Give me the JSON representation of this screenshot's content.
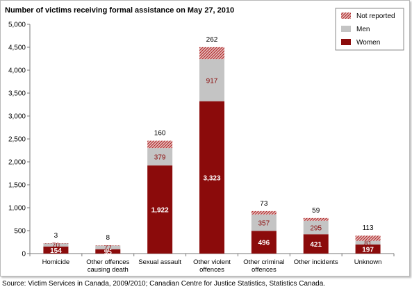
{
  "chart_data": {
    "type": "bar",
    "stacked": true,
    "title": "Number of victims receiving formal assistance on May 27, 2010",
    "categories": [
      [
        "Homicide"
      ],
      [
        "Other offences",
        "causing death"
      ],
      [
        "Sexual assault"
      ],
      [
        "Other violent",
        "offences"
      ],
      [
        "Other criminal",
        "offences"
      ],
      [
        "Other incidents"
      ],
      [
        "Unknown"
      ]
    ],
    "series": [
      {
        "name": "Women",
        "color": "#8b0b0b",
        "values": [
          154,
          95,
          1922,
          3323,
          496,
          421,
          197
        ]
      },
      {
        "name": "Men",
        "color": "#c4c4c4",
        "values": [
          70,
          77,
          379,
          917,
          357,
          295,
          81
        ]
      },
      {
        "name": "Not reported",
        "color": "#d9a0a0",
        "pattern": "hatched",
        "values": [
          3,
          8,
          160,
          262,
          73,
          59,
          113
        ]
      }
    ],
    "ylim": [
      0,
      5000
    ],
    "yticks": [
      0,
      500,
      1000,
      1500,
      2000,
      2500,
      3000,
      3500,
      4000,
      4500,
      5000
    ],
    "ytick_labels": [
      "0",
      "500",
      "1,000",
      "1,500",
      "2,000",
      "2,500",
      "3,000",
      "3,500",
      "4,000",
      "4,500",
      "5,000"
    ],
    "legend_position": "top-right",
    "grid": false
  },
  "source": "Source:  Victim Services in Canada, 2009/2010; Canadian Centre for Justice Statistics, Statistics Canada."
}
